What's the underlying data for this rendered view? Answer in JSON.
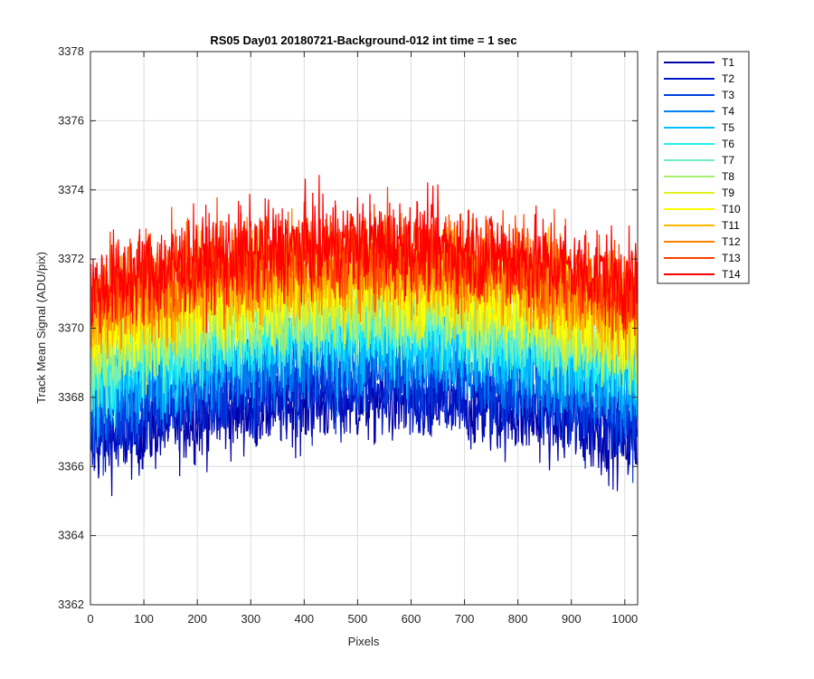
{
  "chart_data": {
    "type": "line",
    "title": "RS05 Day01 20180721-Background-012 int time = 1 sec",
    "xlabel": "Pixels",
    "ylabel": "Track Mean Signal (ADU/pix)",
    "xlim": [
      0,
      1024
    ],
    "ylim": [
      3362,
      3378
    ],
    "xticks": [
      0,
      100,
      200,
      300,
      400,
      500,
      600,
      700,
      800,
      900,
      1000
    ],
    "yticks": [
      3362,
      3364,
      3366,
      3368,
      3370,
      3372,
      3374,
      3376,
      3378
    ],
    "grid": true,
    "legend_position": "outside-top-right",
    "n_points": 1024,
    "series": [
      {
        "name": "T1",
        "color": "#0000a8",
        "level": 3366.6,
        "amplitude": 0.9
      },
      {
        "name": "T2",
        "color": "#0018c8",
        "level": 3367.0,
        "amplitude": 0.9
      },
      {
        "name": "T3",
        "color": "#0040e0",
        "level": 3367.5,
        "amplitude": 1.0
      },
      {
        "name": "T4",
        "color": "#0080f0",
        "level": 3368.0,
        "amplitude": 1.0
      },
      {
        "name": "T5",
        "color": "#00c0ff",
        "level": 3368.4,
        "amplitude": 1.0
      },
      {
        "name": "T6",
        "color": "#20f0f0",
        "level": 3368.8,
        "amplitude": 1.0
      },
      {
        "name": "T7",
        "color": "#70f0c0",
        "level": 3369.1,
        "amplitude": 1.0
      },
      {
        "name": "T8",
        "color": "#a8f070",
        "level": 3369.4,
        "amplitude": 1.0
      },
      {
        "name": "T9",
        "color": "#e0f020",
        "level": 3369.7,
        "amplitude": 1.0
      },
      {
        "name": "T10",
        "color": "#ffff00",
        "level": 3370.0,
        "amplitude": 1.0
      },
      {
        "name": "T11",
        "color": "#ffb800",
        "level": 3370.3,
        "amplitude": 1.0
      },
      {
        "name": "T12",
        "color": "#ff8000",
        "level": 3370.6,
        "amplitude": 1.0
      },
      {
        "name": "T13",
        "color": "#ff4000",
        "level": 3370.9,
        "amplitude": 1.0
      },
      {
        "name": "T14",
        "color": "#ff0000",
        "level": 3371.1,
        "amplitude": 1.0
      }
    ]
  }
}
